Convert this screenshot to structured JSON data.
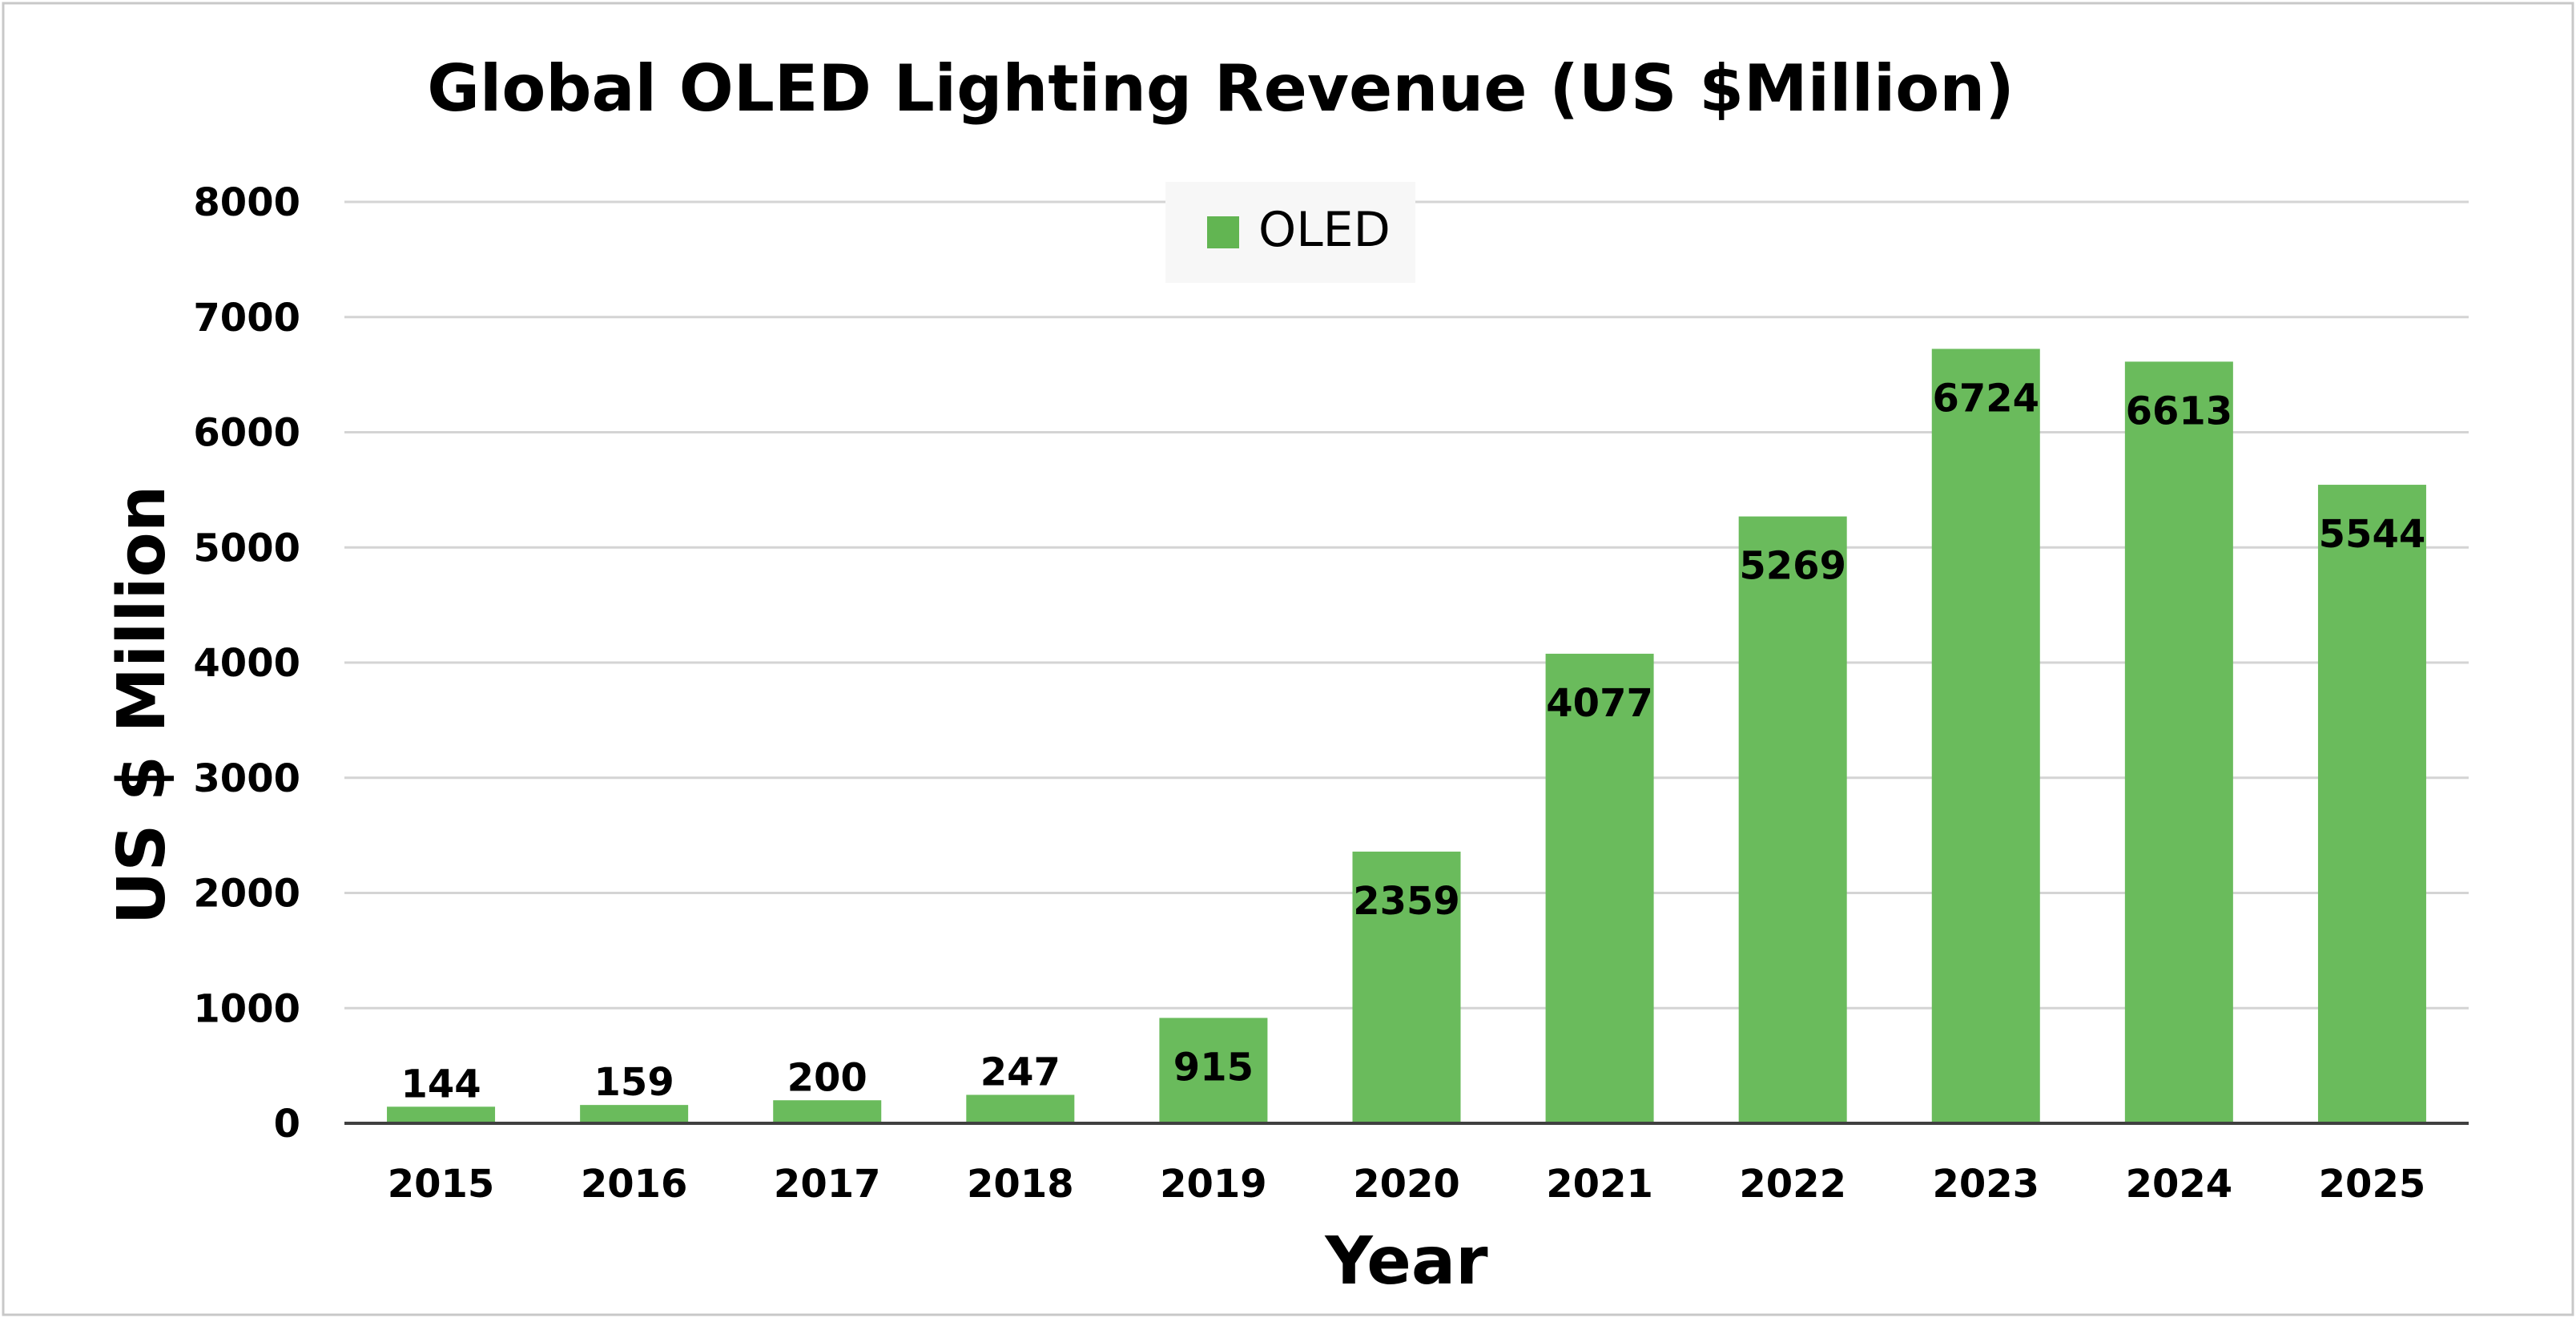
{
  "chart_data": {
    "type": "bar",
    "title": "Global OLED Lighting Revenue (US $Million)",
    "xlabel": "Year",
    "ylabel": "US $ Million",
    "categories": [
      "2015",
      "2016",
      "2017",
      "2018",
      "2019",
      "2020",
      "2021",
      "2022",
      "2023",
      "2024",
      "2025"
    ],
    "series": [
      {
        "name": "OLED",
        "values": [
          144,
          159,
          200,
          247,
          915,
          2359,
          4077,
          5269,
          6724,
          6613,
          5544
        ],
        "data_labels": [
          "144",
          "159",
          "200",
          "247",
          "915",
          "2359",
          "4077",
          "5269",
          "6724",
          "6613",
          "5544"
        ]
      }
    ],
    "ylim": [
      0,
      8000
    ],
    "yticks": [
      "0",
      "1000",
      "2000",
      "3000",
      "4000",
      "5000",
      "6000",
      "7000",
      "8000"
    ],
    "grid": true,
    "legend_position": "top-center",
    "colors": {
      "bar": "#6abb5c",
      "legend_swatch": "#62b552",
      "grid": "#d4d4d4",
      "axis": "#404040",
      "text": "#000000",
      "border": "#c8c8c8",
      "legend_bg": "#f7f7f7"
    }
  }
}
